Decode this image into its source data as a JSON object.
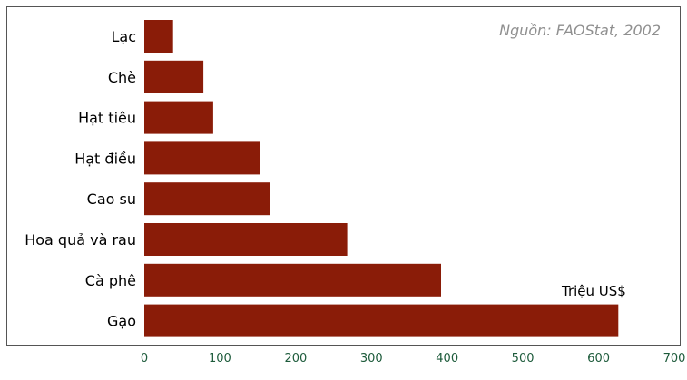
{
  "chart_data": {
    "type": "bar",
    "orientation": "horizontal",
    "categories": [
      "Lạc",
      "Chè",
      "Hạt tiêu",
      "Hạt điều",
      "Cao su",
      "Hoa quả và rau",
      "Cà phê",
      "Gạo"
    ],
    "values": [
      38,
      78,
      91,
      153,
      166,
      268,
      392,
      626
    ],
    "xlim": [
      0,
      700
    ],
    "xticks": [
      0,
      100,
      200,
      300,
      400,
      500,
      600,
      700
    ],
    "xlabel": "Triệu US$",
    "source": "Nguồn: FAOStat, 2002",
    "grid": false,
    "legend": "none",
    "colors": {
      "bar": "#8a1c08",
      "tick_label": "#1d5b3b",
      "source": "#8f8f8f",
      "frame": "#555555"
    }
  }
}
